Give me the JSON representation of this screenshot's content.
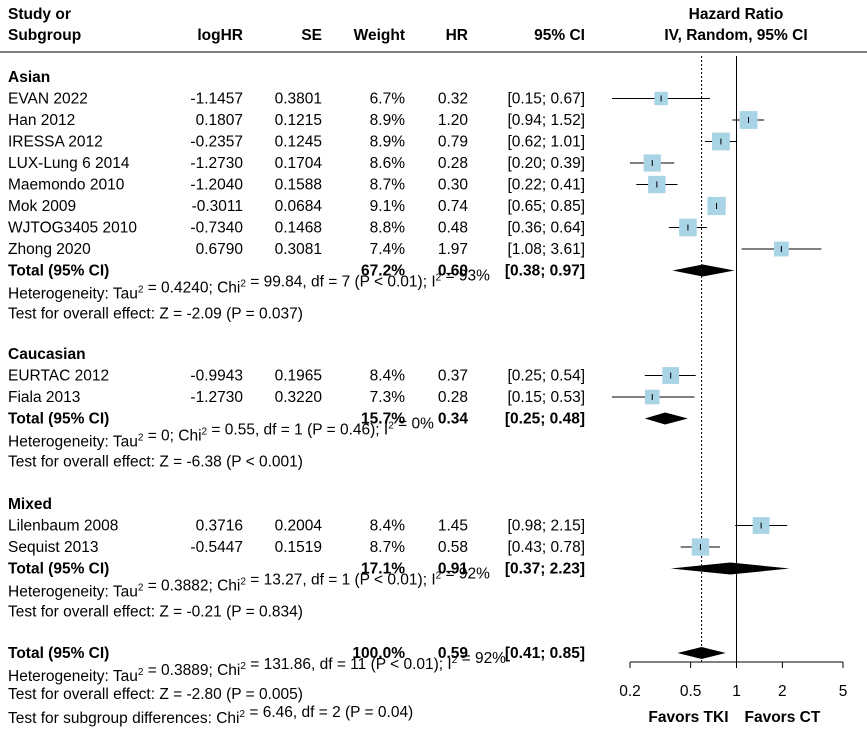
{
  "chart_data": {
    "type": "forest",
    "columns": {
      "study": [
        "Study or",
        "Subgroup"
      ],
      "loghr": "logHR",
      "se": "SE",
      "weight": "Weight",
      "hr": "HR",
      "ci": "95% CI",
      "plot_title": [
        "Hazard Ratio",
        "IV, Random, 95% CI"
      ]
    },
    "axis": {
      "scale": "log",
      "ticks": [
        0.2,
        0.5,
        1,
        2,
        5
      ],
      "tick_labels": [
        "0.2",
        "0.5",
        "1",
        "2",
        "5"
      ],
      "range": [
        0.2,
        5
      ],
      "null_value": 1,
      "overall_effect": 0.59,
      "label_left": "Favors TKI",
      "label_right": "Favors CT"
    },
    "subgroups": [
      {
        "name": "Asian",
        "studies": [
          {
            "study": "EVAN 2022",
            "loghr": "-1.1457",
            "se": "0.3801",
            "weight": "6.7%",
            "hr": "0.32",
            "ci": "[0.15; 0.67]",
            "hr_value": 0.32,
            "lower": 0.15,
            "upper": 0.67,
            "weight_value": 6.7
          },
          {
            "study": "Han 2012",
            "loghr": "0.1807",
            "se": "0.1215",
            "weight": "8.9%",
            "hr": "1.20",
            "ci": "[0.94; 1.52]",
            "hr_value": 1.2,
            "lower": 0.94,
            "upper": 1.52,
            "weight_value": 8.9
          },
          {
            "study": "IRESSA 2012",
            "loghr": "-0.2357",
            "se": "0.1245",
            "weight": "8.9%",
            "hr": "0.79",
            "ci": "[0.62; 1.01]",
            "hr_value": 0.79,
            "lower": 0.62,
            "upper": 1.01,
            "weight_value": 8.9
          },
          {
            "study": "LUX-Lung 6 2014",
            "loghr": "-1.2730",
            "se": "0.1704",
            "weight": "8.6%",
            "hr": "0.28",
            "ci": "[0.20; 0.39]",
            "hr_value": 0.28,
            "lower": 0.2,
            "upper": 0.39,
            "weight_value": 8.6
          },
          {
            "study": "Maemondo 2010",
            "loghr": "-1.2040",
            "se": "0.1588",
            "weight": "8.7%",
            "hr": "0.30",
            "ci": "[0.22; 0.41]",
            "hr_value": 0.3,
            "lower": 0.22,
            "upper": 0.41,
            "weight_value": 8.7
          },
          {
            "study": "Mok 2009",
            "loghr": "-0.3011",
            "se": "0.0684",
            "weight": "9.1%",
            "hr": "0.74",
            "ci": "[0.65; 0.85]",
            "hr_value": 0.74,
            "lower": 0.65,
            "upper": 0.85,
            "weight_value": 9.1
          },
          {
            "study": "WJTOG3405 2010",
            "loghr": "-0.7340",
            "se": "0.1468",
            "weight": "8.8%",
            "hr": "0.48",
            "ci": "[0.36; 0.64]",
            "hr_value": 0.48,
            "lower": 0.36,
            "upper": 0.64,
            "weight_value": 8.8
          },
          {
            "study": "Zhong 2020",
            "loghr": "0.6790",
            "se": "0.3081",
            "weight": "7.4%",
            "hr": "1.97",
            "ci": "[1.08; 3.61]",
            "hr_value": 1.97,
            "lower": 1.08,
            "upper": 3.61,
            "weight_value": 7.4
          }
        ],
        "total": {
          "label": "Total (95% CI)",
          "weight": "67.2%",
          "hr": "0.60",
          "ci": "[0.38; 0.97]",
          "hr_value": 0.6,
          "lower": 0.38,
          "upper": 0.97
        },
        "heterogeneity": {
          "prefix": "Heterogeneity: Tau",
          "tau2": "0.4240",
          "chi2": "99.84",
          "rest": ", df = 7 (P < 0.01); I",
          "i2": "93%"
        },
        "overall_test": "Test for overall effect: Z = -2.09 (P = 0.037)"
      },
      {
        "name": "Caucasian",
        "studies": [
          {
            "study": "EURTAC 2012",
            "loghr": "-0.9943",
            "se": "0.1965",
            "weight": "8.4%",
            "hr": "0.37",
            "ci": "[0.25; 0.54]",
            "hr_value": 0.37,
            "lower": 0.25,
            "upper": 0.54,
            "weight_value": 8.4
          },
          {
            "study": "Fiala 2013",
            "loghr": "-1.2730",
            "se": "0.3220",
            "weight": "7.3%",
            "hr": "0.28",
            "ci": "[0.15; 0.53]",
            "hr_value": 0.28,
            "lower": 0.15,
            "upper": 0.53,
            "weight_value": 7.3
          }
        ],
        "total": {
          "label": "Total (95% CI)",
          "weight": "15.7%",
          "hr": "0.34",
          "ci": "[0.25; 0.48]",
          "hr_value": 0.34,
          "lower": 0.25,
          "upper": 0.48
        },
        "heterogeneity": {
          "prefix": "Heterogeneity: Tau",
          "tau2": "0",
          "chi2": "0.55",
          "rest": ", df = 1 (P = 0.46); I",
          "i2": "0%"
        },
        "overall_test": "Test for overall effect: Z = -6.38 (P < 0.001)"
      },
      {
        "name": "Mixed",
        "studies": [
          {
            "study": "Lilenbaum 2008",
            "loghr": "0.3716",
            "se": "0.2004",
            "weight": "8.4%",
            "hr": "1.45",
            "ci": "[0.98; 2.15]",
            "hr_value": 1.45,
            "lower": 0.98,
            "upper": 2.15,
            "weight_value": 8.4
          },
          {
            "study": "Sequist 2013",
            "loghr": "-0.5447",
            "se": "0.1519",
            "weight": "8.7%",
            "hr": "0.58",
            "ci": "[0.43; 0.78]",
            "hr_value": 0.58,
            "lower": 0.43,
            "upper": 0.78,
            "weight_value": 8.7
          }
        ],
        "total": {
          "label": "Total (95% CI)",
          "weight": "17.1%",
          "hr": "0.91",
          "ci": "[0.37; 2.23]",
          "hr_value": 0.91,
          "lower": 0.37,
          "upper": 2.23
        },
        "heterogeneity": {
          "prefix": "Heterogeneity: Tau",
          "tau2": "0.3882",
          "chi2": "13.27",
          "rest": ", df = 1 (P < 0.01); I",
          "i2": "92%"
        },
        "overall_test": "Test for overall effect: Z = -0.21 (P = 0.834)"
      }
    ],
    "overall": {
      "label": "Total (95% CI)",
      "weight": "100.0%",
      "hr": "0.59",
      "ci": "[0.41; 0.85]",
      "hr_value": 0.59,
      "lower": 0.41,
      "upper": 0.85,
      "heterogeneity": {
        "prefix": "Heterogeneity: Tau",
        "tau2": "0.3889",
        "chi2": "131.86",
        "rest": ", df = 11 (P < 0.01); I",
        "i2": "92%"
      },
      "overall_test": "Test for overall effect: Z = -2.80 (P = 0.005)",
      "subgroup_test": {
        "prefix": "Test for subgroup differences: Chi",
        "rest": " = 6.46, df = 2 (P = 0.04)"
      }
    },
    "colors": {
      "box": "#a8d4e6",
      "diamond": "#000000",
      "line": "#000000"
    }
  }
}
